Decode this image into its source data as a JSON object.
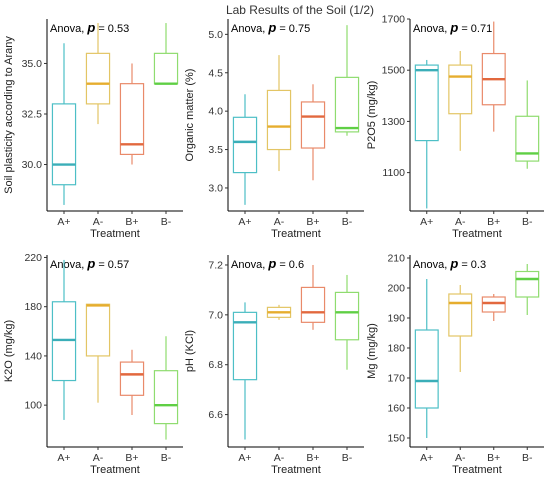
{
  "title": "Lab Results of the Soil (1/2)",
  "colors": {
    "A+": "#4dbfc6",
    "A-": "#e3c565",
    "B+": "#e98a6a",
    "B-": "#8fdc6f"
  },
  "median_colors": {
    "A+": "#3aaeb8",
    "A-": "#e6ad2e",
    "B+": "#e2683e",
    "B-": "#5fcf44"
  },
  "chart_data": [
    {
      "type": "boxplot",
      "ylabel": "Soil plasticity according to Arany",
      "xlabel": "Treatment",
      "categories": [
        "A+",
        "A-",
        "B+",
        "B-"
      ],
      "ylim": [
        27.7,
        37.2
      ],
      "yticks": [
        30.0,
        32.5,
        35.0
      ],
      "ytick_labels": [
        "30.0",
        "32.5",
        "35.0"
      ],
      "annotation": {
        "text": "Anova, ",
        "p_label": "p",
        "p_value": "= 0.53"
      },
      "boxes": [
        {
          "category": "A+",
          "min": 28.0,
          "q1": 29.0,
          "median": 30.0,
          "q3": 33.0,
          "max": 36.0
        },
        {
          "category": "A-",
          "min": 32.0,
          "q1": 33.0,
          "median": 34.0,
          "q3": 35.5,
          "max": 37.0
        },
        {
          "category": "B+",
          "min": 30.0,
          "q1": 30.5,
          "median": 31.0,
          "q3": 34.0,
          "max": 35.0
        },
        {
          "category": "B-",
          "min": 34.0,
          "q1": 34.0,
          "median": 34.0,
          "q3": 35.5,
          "max": 37.0
        }
      ]
    },
    {
      "type": "boxplot",
      "ylabel": "Organic matter (%)",
      "xlabel": "Treatment",
      "categories": [
        "A+",
        "A-",
        "B+",
        "B-"
      ],
      "ylim": [
        2.7,
        5.2
      ],
      "yticks": [
        3.0,
        3.5,
        4.0,
        4.5,
        5.0
      ],
      "ytick_labels": [
        "3.0",
        "3.5",
        "4.0",
        "4.5",
        "5.0"
      ],
      "annotation": {
        "text": "Anova, ",
        "p_label": "p",
        "p_value": "= 0.75"
      },
      "boxes": [
        {
          "category": "A+",
          "min": 2.78,
          "q1": 3.2,
          "median": 3.6,
          "q3": 3.92,
          "max": 4.22
        },
        {
          "category": "A-",
          "min": 3.22,
          "q1": 3.5,
          "median": 3.8,
          "q3": 4.27,
          "max": 4.73
        },
        {
          "category": "B+",
          "min": 3.1,
          "q1": 3.52,
          "median": 3.93,
          "q3": 4.12,
          "max": 4.35
        },
        {
          "category": "B-",
          "min": 3.68,
          "q1": 3.73,
          "median": 3.78,
          "q3": 4.44,
          "max": 5.12
        }
      ]
    },
    {
      "type": "boxplot",
      "ylabel": "P2O5 (mg/kg)",
      "xlabel": "Treatment",
      "categories": [
        "A+",
        "A-",
        "B+",
        "B-"
      ],
      "ylim": [
        950,
        1700
      ],
      "yticks": [
        1100,
        1300,
        1500,
        1700
      ],
      "ytick_labels": [
        "1100",
        "1300",
        "1500",
        "1700"
      ],
      "annotation": {
        "text": "Anova, ",
        "p_label": "p",
        "p_value": "= 0.71"
      },
      "boxes": [
        {
          "category": "A+",
          "min": 960,
          "q1": 1225,
          "median": 1500,
          "q3": 1520,
          "max": 1540
        },
        {
          "category": "A-",
          "min": 1185,
          "q1": 1330,
          "median": 1475,
          "q3": 1520,
          "max": 1575
        },
        {
          "category": "B+",
          "min": 1260,
          "q1": 1365,
          "median": 1465,
          "q3": 1565,
          "max": 1690
        },
        {
          "category": "B-",
          "min": 1115,
          "q1": 1145,
          "median": 1175,
          "q3": 1320,
          "max": 1460
        }
      ]
    },
    {
      "type": "boxplot",
      "ylabel": "K2O (mg/kg)",
      "xlabel": "Treatment",
      "categories": [
        "A+",
        "A-",
        "B+",
        "B-"
      ],
      "ylim": [
        66,
        222
      ],
      "yticks": [
        100,
        140,
        180,
        220
      ],
      "ytick_labels": [
        "100",
        "140",
        "180",
        "220"
      ],
      "annotation": {
        "text": "Anova, ",
        "p_label": "p",
        "p_value": "= 0.57"
      },
      "boxes": [
        {
          "category": "A+",
          "min": 88,
          "q1": 120,
          "median": 153,
          "q3": 184,
          "max": 218
        },
        {
          "category": "A-",
          "min": 102,
          "q1": 140,
          "median": 181,
          "q3": 182,
          "max": 182
        },
        {
          "category": "B+",
          "min": 92,
          "q1": 108,
          "median": 125,
          "q3": 135,
          "max": 145
        },
        {
          "category": "B-",
          "min": 72,
          "q1": 85,
          "median": 100,
          "q3": 128,
          "max": 156
        }
      ]
    },
    {
      "type": "boxplot",
      "ylabel": "pH (KCl)",
      "xlabel": "Treatment",
      "categories": [
        "A+",
        "A-",
        "B+",
        "B-"
      ],
      "ylim": [
        6.47,
        7.24
      ],
      "yticks": [
        6.6,
        6.8,
        7.0,
        7.2
      ],
      "ytick_labels": [
        "6.6",
        "6.8",
        "7.0",
        "7.2"
      ],
      "annotation": {
        "text": "Anova, ",
        "p_label": "p",
        "p_value": "= 0.6"
      },
      "boxes": [
        {
          "category": "A+",
          "min": 6.5,
          "q1": 6.74,
          "median": 6.97,
          "q3": 7.01,
          "max": 7.05
        },
        {
          "category": "A-",
          "min": 6.98,
          "q1": 6.99,
          "median": 7.01,
          "q3": 7.03,
          "max": 7.04
        },
        {
          "category": "B+",
          "min": 6.94,
          "q1": 6.97,
          "median": 7.01,
          "q3": 7.11,
          "max": 7.2
        },
        {
          "category": "B-",
          "min": 6.78,
          "q1": 6.9,
          "median": 7.01,
          "q3": 7.09,
          "max": 7.16
        }
      ]
    },
    {
      "type": "boxplot",
      "ylabel": "Mg (mg/kg)",
      "xlabel": "Treatment",
      "categories": [
        "A+",
        "A-",
        "B+",
        "B-"
      ],
      "ylim": [
        147,
        211
      ],
      "yticks": [
        150,
        160,
        170,
        180,
        190,
        200,
        210
      ],
      "ytick_labels": [
        "150",
        "160",
        "170",
        "180",
        "190",
        "200",
        "210"
      ],
      "annotation": {
        "text": "Anova, ",
        "p_label": "p",
        "p_value": "= 0.3"
      },
      "boxes": [
        {
          "category": "A+",
          "min": 150,
          "q1": 160,
          "median": 169,
          "q3": 186,
          "max": 203
        },
        {
          "category": "A-",
          "min": 172,
          "q1": 184,
          "median": 195,
          "q3": 198,
          "max": 201
        },
        {
          "category": "B+",
          "min": 189,
          "q1": 192,
          "median": 195,
          "q3": 197,
          "max": 198
        },
        {
          "category": "B-",
          "min": 191,
          "q1": 197,
          "median": 203,
          "q3": 205.5,
          "max": 208
        }
      ]
    }
  ]
}
